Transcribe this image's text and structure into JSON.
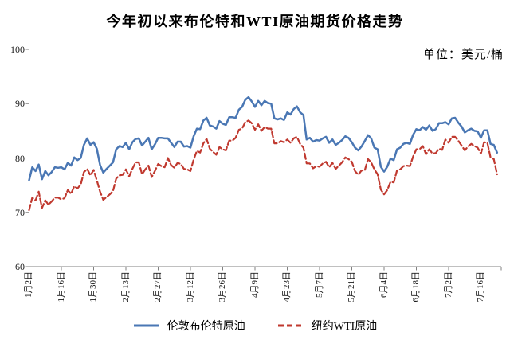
{
  "title": "今年初以来布伦特和WTI原油期货价格走势",
  "unit_label": "单位：美元/桶",
  "chart_data": {
    "type": "line",
    "title": "今年初以来布伦特和WTI原油期货价格走势",
    "ylabel": "美元/桶",
    "ylim": [
      60,
      100
    ],
    "yticks": [
      60,
      70,
      80,
      90,
      100
    ],
    "x_tick_labels": [
      "1月2日",
      "1月16日",
      "1月30日",
      "2月13日",
      "2月27日",
      "3月12日",
      "3月26日",
      "4月9日",
      "4月23日",
      "5月7日",
      "5月21日",
      "6月4日",
      "6月18日",
      "7月2日",
      "7月16日"
    ],
    "points_per_tick": 10,
    "grid": false,
    "legend_position": "bottom",
    "axis_color": "#808080",
    "series": [
      {
        "name": "伦敦布伦特原油",
        "color": "#4a77b4",
        "line_style": "solid",
        "values": [
          75.9,
          78.3,
          77.6,
          78.8,
          76.1,
          77.6,
          76.8,
          77.4,
          78.3,
          78.2,
          78.3,
          77.9,
          79.1,
          78.6,
          80.1,
          79.6,
          80.0,
          82.4,
          83.6,
          82.4,
          82.9,
          81.7,
          78.7,
          77.3,
          78.0,
          78.6,
          79.2,
          81.6,
          82.2,
          82.0,
          82.8,
          81.6,
          82.9,
          83.5,
          83.6,
          82.3,
          83.0,
          83.7,
          81.6,
          82.5,
          83.7,
          83.7,
          83.6,
          83.6,
          82.8,
          82.0,
          83.0,
          83.0,
          82.1,
          82.2,
          81.9,
          84.0,
          85.4,
          85.3,
          86.9,
          87.4,
          86.0,
          85.8,
          85.4,
          86.8,
          86.3,
          86.1,
          87.5,
          87.5,
          87.4,
          88.9,
          89.4,
          90.7,
          91.2,
          90.4,
          89.4,
          90.5,
          89.7,
          90.5,
          90.1,
          90.0,
          87.3,
          87.1,
          87.3,
          87.0,
          88.4,
          88.0,
          89.0,
          89.5,
          88.4,
          87.9,
          83.4,
          83.7,
          83.0,
          83.3,
          83.2,
          83.6,
          83.9,
          82.8,
          83.4,
          82.4,
          82.8,
          83.3,
          84.0,
          83.7,
          82.9,
          81.9,
          81.4,
          82.1,
          83.1,
          84.2,
          83.6,
          81.9,
          81.6,
          78.4,
          77.5,
          78.4,
          79.9,
          79.6,
          81.6,
          81.9,
          82.6,
          82.8,
          82.6,
          84.3,
          85.3,
          85.1,
          85.7,
          85.2,
          86.0,
          85.0,
          85.3,
          86.4,
          86.4,
          86.6,
          86.2,
          87.3,
          87.4,
          86.5,
          85.8,
          84.7,
          85.1,
          85.4,
          85.0,
          84.9,
          83.7,
          85.1,
          85.1,
          82.6,
          82.4,
          81.0
        ]
      },
      {
        "name": "纽约WTI原油",
        "color": "#c0392f",
        "line_style": "dashed",
        "values": [
          70.4,
          72.7,
          72.2,
          73.8,
          70.8,
          72.2,
          71.4,
          72.0,
          72.7,
          72.7,
          72.4,
          72.6,
          74.1,
          73.4,
          74.8,
          74.4,
          75.1,
          77.4,
          78.0,
          76.8,
          77.8,
          75.9,
          73.8,
          72.3,
          72.8,
          73.3,
          73.9,
          76.2,
          76.8,
          76.9,
          77.9,
          76.6,
          78.0,
          79.2,
          79.2,
          77.0,
          77.9,
          78.6,
          76.5,
          77.6,
          78.9,
          78.5,
          78.3,
          80.0,
          78.7,
          78.2,
          79.1,
          78.9,
          78.0,
          77.9,
          77.6,
          79.7,
          81.3,
          81.0,
          82.7,
          83.5,
          81.7,
          81.1,
          80.6,
          82.0,
          81.6,
          81.4,
          83.2,
          83.2,
          83.7,
          85.2,
          85.4,
          86.6,
          86.9,
          86.4,
          85.2,
          86.2,
          85.0,
          85.7,
          85.4,
          85.4,
          82.7,
          82.7,
          83.1,
          82.9,
          83.4,
          82.8,
          83.6,
          83.9,
          82.6,
          81.9,
          79.0,
          79.0,
          78.1,
          78.5,
          78.4,
          79.0,
          79.3,
          78.3,
          79.1,
          78.0,
          78.6,
          79.2,
          80.1,
          79.8,
          79.3,
          77.6,
          76.9,
          77.7,
          77.7,
          79.8,
          79.2,
          77.9,
          77.0,
          74.2,
          73.3,
          74.1,
          75.6,
          75.5,
          77.7,
          77.9,
          78.5,
          78.6,
          78.5,
          80.3,
          81.6,
          81.6,
          82.2,
          80.7,
          81.6,
          80.8,
          80.9,
          81.7,
          81.5,
          83.4,
          82.8,
          83.9,
          83.9,
          83.2,
          82.3,
          81.4,
          82.1,
          82.6,
          82.2,
          81.9,
          80.8,
          82.9,
          82.8,
          80.1,
          79.8,
          77.0
        ]
      }
    ]
  }
}
